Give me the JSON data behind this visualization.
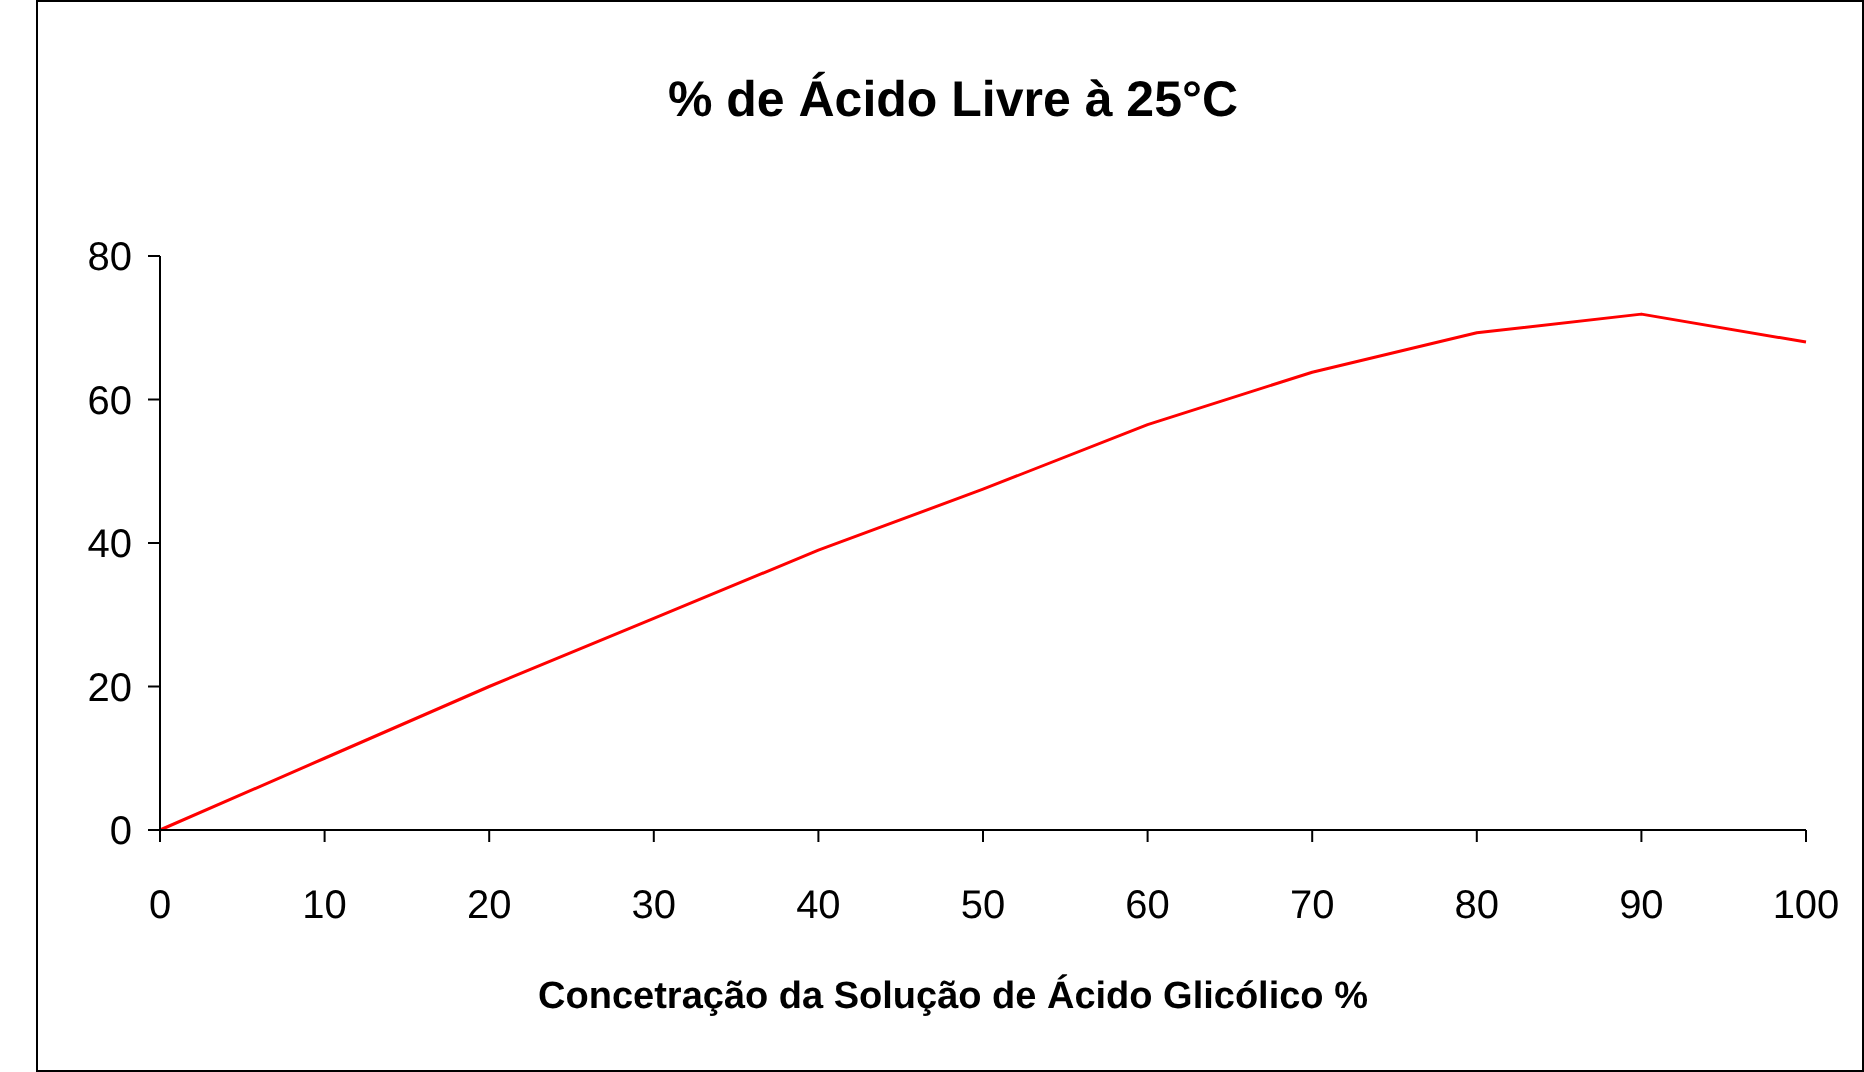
{
  "chart_data": {
    "type": "line",
    "title": "% de Ácido Livre à 25°C",
    "xlabel": "Concetração da Solução de Ácido Glicólico %",
    "x": [
      0,
      10,
      20,
      30,
      40,
      50,
      60,
      70,
      80,
      90,
      100
    ],
    "series": [
      {
        "color": "#ff0000",
        "values": [
          0,
          10,
          20,
          29.5,
          39,
          47.5,
          56.5,
          63.8,
          69.3,
          71.9,
          68
        ]
      }
    ],
    "xlim": [
      0,
      100
    ],
    "xticks": [
      0,
      10,
      20,
      30,
      40,
      50,
      60,
      70,
      80,
      90,
      100
    ],
    "ylim": [
      0,
      80
    ],
    "yticks": [
      0,
      20,
      40,
      60,
      80
    ],
    "grid": false,
    "marker": "none",
    "line_style": "solid"
  }
}
